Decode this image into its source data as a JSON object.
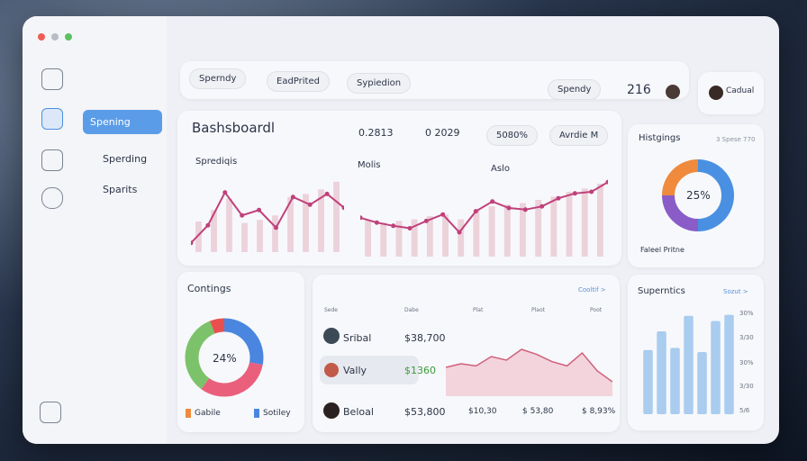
{
  "sidebar": {
    "items": [
      "Spening",
      "Sperding",
      "Sparits"
    ]
  },
  "toolbar": {
    "buttons": [
      "Sperndy",
      "EadPrited",
      "Sypiedion"
    ],
    "dropdown": "Spendy",
    "count": "216",
    "user": "Cadual"
  },
  "dashboard": {
    "title": "Bashsboardl",
    "stats": [
      "0.2813",
      "0 2029",
      "5080%"
    ],
    "select": "Avrdie M",
    "chart1": {
      "title": "Sprediqis",
      "line": [
        12,
        35,
        78,
        48,
        55,
        32,
        72,
        62,
        76,
        58
      ],
      "bars": [
        40,
        55,
        70,
        38,
        42,
        48,
        72,
        76,
        82,
        92
      ]
    },
    "chart2": {
      "title": "Molis",
      "label": "Aslo",
      "line": [
        48,
        42,
        38,
        35,
        44,
        52,
        30,
        56,
        68,
        60,
        58,
        62,
        72,
        78,
        80,
        92
      ],
      "bars": [
        45,
        42,
        44,
        46,
        50,
        52,
        46,
        58,
        62,
        64,
        66,
        70,
        74,
        80,
        84,
        90
      ]
    }
  },
  "highlights": {
    "title": "Histgings",
    "note": "3 Spese 770",
    "center": "25%",
    "legend": "Faleel Pritne",
    "segments": [
      {
        "color": "#4a90e2",
        "value": 50
      },
      {
        "color": "#8a5cc8",
        "value": 25
      },
      {
        "color": "#f08a3c",
        "value": 25
      }
    ]
  },
  "contings": {
    "title": "Contings",
    "center": "24%",
    "legend": [
      "Gabile",
      "Sotiley"
    ],
    "segments": [
      {
        "color": "#4a86e0",
        "value": 28
      },
      {
        "color": "#ea5f7c",
        "value": 32
      },
      {
        "color": "#7cc26a",
        "value": 34
      },
      {
        "color": "#e85050",
        "value": 6
      }
    ]
  },
  "table": {
    "link": "Cooltif >",
    "headers": [
      "Sede",
      "Dabe",
      "Plat",
      "Plaot",
      "Poot"
    ],
    "rows": [
      [
        "Sribal",
        "$38,700"
      ],
      [
        "Vally",
        "$1360"
      ],
      [
        "Beloal",
        "$53,800",
        "$10,30",
        "$ 53,80",
        "$ 8,93%"
      ]
    ],
    "area": [
      40,
      45,
      42,
      55,
      50,
      65,
      58,
      48,
      42,
      60,
      35,
      20
    ]
  },
  "superntics": {
    "title": "Superntics",
    "link": "Sozut >",
    "ticks": [
      "30%",
      "3/30",
      "30%",
      "3/30",
      "5/6"
    ],
    "bars": [
      62,
      80,
      64,
      95,
      60,
      90,
      96
    ]
  }
}
